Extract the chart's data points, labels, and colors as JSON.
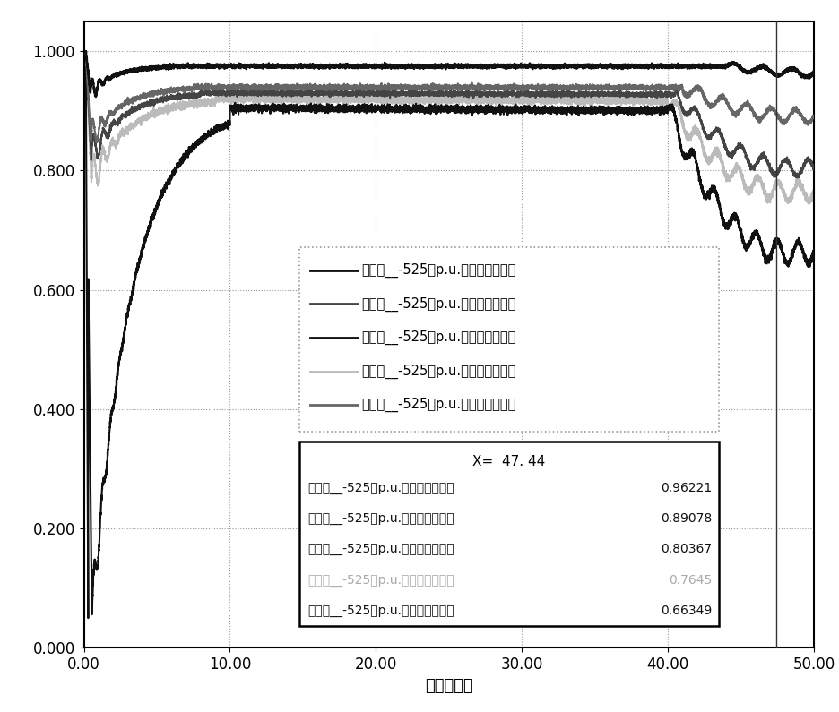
{
  "xlabel": "时间（秒）",
  "xlim": [
    0,
    50
  ],
  "ylim": [
    0.0,
    1.05
  ],
  "yticks": [
    0.0,
    0.2,
    0.4,
    0.6,
    0.8,
    1.0
  ],
  "ytick_labels": [
    "0.000",
    "0.200",
    "0.400",
    "0.600",
    "0.800",
    "1.000"
  ],
  "xticks": [
    0,
    10,
    20,
    30,
    40,
    50
  ],
  "xtick_labels": [
    "0.00",
    "10.00",
    "20.00",
    "30.00",
    "40.00",
    "50.00"
  ],
  "series": [
    {
      "name": "浙三门__-525（p.u.）（母线电压）",
      "color": "#111111",
      "linewidth": 1.5
    },
    {
      "name": "浙塔岭__-525（p.u.）（母线电压）",
      "color": "#444444",
      "linewidth": 1.5
    },
    {
      "name": "国莲都__-525（p.u.）（母线电压）",
      "color": "#111111",
      "linewidth": 1.8
    },
    {
      "name": "浙回浦__-525（p.u.）（母线电压）",
      "color": "#bbbbbb",
      "linewidth": 1.5
    },
    {
      "name": "浙瓯海__-525（p.u.）（母线电压）",
      "color": "#666666",
      "linewidth": 1.5
    }
  ],
  "vline_x": 47.44,
  "vline_color": "#333333",
  "background_color": "#ffffff",
  "grid_color": "#999999",
  "legend_title_x47": "X=  47. 44",
  "info_rows": [
    [
      "国莲都__-525（p.u.）（母线电压）",
      "0.96221",
      "#111111"
    ],
    [
      "浙瓯海__-525（p.u.）（母线电压）",
      "0.89078",
      "#111111"
    ],
    [
      "浙塔岭__-525（p.u.）（母线电压）",
      "0.80367",
      "#111111"
    ],
    [
      "浙回浦__-525（p.u.）（母线电压）",
      "0.7645",
      "#aaaaaa"
    ],
    [
      "浙三门__-525（p.u.）（母线电压）",
      "0.66349",
      "#111111"
    ]
  ]
}
